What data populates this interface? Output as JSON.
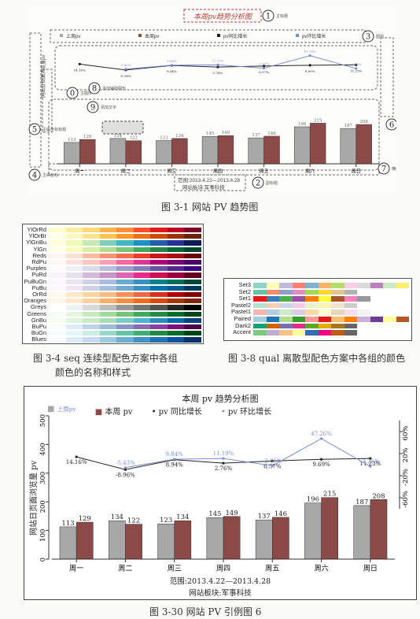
{
  "figure_3_1": {
    "title": "本周pv趋势分析图",
    "legend": [
      "上周pv",
      "本周pv",
      "pv同比增长",
      "pv环比增长"
    ],
    "left_axis_label": "网站日页面浏览量pv",
    "range_text": "范围:2013.4.22—2013.4.28",
    "board_text": "网站板块:军事科技",
    "annotations": [
      {
        "num": "1",
        "text": "主标题"
      },
      {
        "num": "2",
        "text": "副标题"
      },
      {
        "num": "3",
        "text": "图例"
      },
      {
        "num": "4",
        "text": "主纵坐标"
      },
      {
        "num": "5",
        "text": "主纵坐标标题"
      },
      {
        "num": "6",
        "text": "副纵坐标"
      },
      {
        "num": "7",
        "text": "横坐标"
      },
      {
        "num": "8",
        "text": "添加辅助图形"
      },
      {
        "num": "9",
        "text": "添加文字"
      },
      {
        "num": "0",
        "text": "主图形"
      }
    ],
    "caption": "图 3-1 网站 PV 趋势图"
  },
  "figure_3_4": {
    "names": [
      "YlOrRd",
      "YlOrBr",
      "YlGnBu",
      "YlGn",
      "Reds",
      "RdPu",
      "Purples",
      "PuRd",
      "PuBuGn",
      "PuBu",
      "OrRd",
      "Oranges",
      "Greys",
      "Greens",
      "GnBu",
      "BuPu",
      "BuGn",
      "Blues"
    ],
    "colors": [
      [
        "#ffffcc",
        "#ffeda0",
        "#fed976",
        "#feb24c",
        "#fd8d3c",
        "#fc4e2a",
        "#e31a1c",
        "#bd0026",
        "#800026"
      ],
      [
        "#ffffe5",
        "#fff7bc",
        "#fee391",
        "#fec44f",
        "#fe9929",
        "#ec7014",
        "#cc4c02",
        "#993404",
        "#662506"
      ],
      [
        "#ffffd9",
        "#edf8b1",
        "#c7e9b4",
        "#7fcdbb",
        "#41b6c4",
        "#1d91c0",
        "#225ea8",
        "#253494",
        "#081d58"
      ],
      [
        "#ffffe5",
        "#f7fcb9",
        "#d9f0a3",
        "#addd8e",
        "#78c679",
        "#41ab5d",
        "#238443",
        "#006837",
        "#004529"
      ],
      [
        "#fff5f0",
        "#fee0d2",
        "#fcbba1",
        "#fc9272",
        "#fb6a4a",
        "#ef3b2c",
        "#cb181d",
        "#a50f15",
        "#67000d"
      ],
      [
        "#fff7f3",
        "#fde0dd",
        "#fcc5c0",
        "#fa9fb5",
        "#f768a1",
        "#dd3497",
        "#ae017e",
        "#7a0177",
        "#49006a"
      ],
      [
        "#fcfbfd",
        "#efedf5",
        "#dadaeb",
        "#bcbddc",
        "#9e9ac8",
        "#807dba",
        "#6a51a3",
        "#54278f",
        "#3f007d"
      ],
      [
        "#f7f4f9",
        "#e7e1ef",
        "#d4b9da",
        "#c994c7",
        "#df65b0",
        "#e7298a",
        "#ce1256",
        "#980043",
        "#67001f"
      ],
      [
        "#fff7fb",
        "#ece2f0",
        "#d0d1e6",
        "#a6bddb",
        "#67a9cf",
        "#3690c0",
        "#02818a",
        "#016c59",
        "#014636"
      ],
      [
        "#fff7fb",
        "#ece7f2",
        "#d0d1e6",
        "#a6bddb",
        "#74a9cf",
        "#3690c0",
        "#0570b0",
        "#045a8d",
        "#023858"
      ],
      [
        "#fff7ec",
        "#fee8c8",
        "#fdd49e",
        "#fdbb84",
        "#fc8d59",
        "#ef6548",
        "#d7301f",
        "#b30000",
        "#7f0000"
      ],
      [
        "#fff5eb",
        "#fee6ce",
        "#fdd0a2",
        "#fdae6b",
        "#fd8d3c",
        "#f16913",
        "#d94801",
        "#a63603",
        "#7f2704"
      ],
      [
        "#ffffff",
        "#f0f0f0",
        "#d9d9d9",
        "#bdbdbd",
        "#969696",
        "#737373",
        "#525252",
        "#252525",
        "#000000"
      ],
      [
        "#f7fcf5",
        "#e5f5e0",
        "#c7e9c0",
        "#a1d99b",
        "#74c476",
        "#41ab5d",
        "#238b45",
        "#006d2c",
        "#00441b"
      ],
      [
        "#f7fcf0",
        "#e0f3db",
        "#ccebc5",
        "#a8ddb5",
        "#7bccc4",
        "#4eb3d3",
        "#2b8cbe",
        "#0868ac",
        "#084081"
      ],
      [
        "#f7fcfd",
        "#e0ecf4",
        "#bfd3e6",
        "#9ebcda",
        "#8c96c6",
        "#8c6bb1",
        "#88419d",
        "#810f7c",
        "#4d004b"
      ],
      [
        "#f7fcfd",
        "#e5f5f9",
        "#ccece6",
        "#99d8c9",
        "#66c2a4",
        "#41ae76",
        "#238b45",
        "#006d2c",
        "#00441b"
      ],
      [
        "#f7fbff",
        "#deebf7",
        "#c6dbef",
        "#9ecae1",
        "#6baed6",
        "#4292c6",
        "#2171b5",
        "#08519c",
        "#08306b"
      ]
    ],
    "caption_line1": "图 3-4 seq 连续型配色方案中各组",
    "caption_line2": "颜色的名称和样式"
  },
  "figure_3_8": {
    "names": [
      "Set3",
      "Set2",
      "Set1",
      "Pastel2",
      "Pastel1",
      "Paired",
      "Dark2",
      "Accent"
    ],
    "colors": [
      [
        "#8dd3c7",
        "#ffffb3",
        "#bebada",
        "#fb8072",
        "#80b1d3",
        "#fdb462",
        "#b3de69",
        "#fccde5",
        "#d9d9d9",
        "#bc80bd",
        "#ccebc5",
        "#ffed6f"
      ],
      [
        "#66c2a5",
        "#fc8d62",
        "#8da0cb",
        "#e78ac3",
        "#a6d854",
        "#ffd92f",
        "#e5c494",
        "#b3b3b3"
      ],
      [
        "#e41a1c",
        "#377eb8",
        "#4daf4a",
        "#984ea3",
        "#ff7f00",
        "#ffff33",
        "#a65628",
        "#f781bf",
        "#999999"
      ],
      [
        "#b3e2cd",
        "#fdcdac",
        "#cbd5e8",
        "#f4cae4",
        "#e6f5c9",
        "#fff2ae",
        "#f1e2cc",
        "#cccccc"
      ],
      [
        "#fbb4ae",
        "#b3cde3",
        "#ccebc5",
        "#decbe4",
        "#fed9a6",
        "#ffffcc",
        "#e5d8bd",
        "#fddaec",
        "#f2f2f2"
      ],
      [
        "#a6cee3",
        "#1f78b4",
        "#b2df8a",
        "#33a02c",
        "#fb9a99",
        "#e31a1c",
        "#fdbf6f",
        "#ff7f00",
        "#cab2d6",
        "#6a3d9a",
        "#ffff99",
        "#b15928"
      ],
      [
        "#1b9e77",
        "#d95f02",
        "#7570b3",
        "#e7298a",
        "#66a61e",
        "#e6ab02",
        "#a6761d",
        "#666666"
      ],
      [
        "#7fc97f",
        "#beaed4",
        "#fdc086",
        "#ffff99",
        "#386cb0",
        "#f0027f",
        "#bf5b17",
        "#666666"
      ]
    ],
    "caption": "图 3-8 qual 离散型配色方案中各组的颜色"
  },
  "figure_3_30": {
    "title": "本周 pv 趋势分析图",
    "legend": [
      {
        "label": "上周pv",
        "symbol": "■",
        "color": "#a8a8a8"
      },
      {
        "label": "本周 pv",
        "symbol": "■",
        "color": "#8b4a47"
      },
      {
        "label": "pv 同比增长",
        "symbol": "•",
        "color": "#222222"
      },
      {
        "label": "pv 环比增长",
        "symbol": "•",
        "color": "#7a8fd0"
      }
    ],
    "range_text": "范围:2013.4.22—2013.4.28",
    "board_text": "网站板块:军事科技",
    "caption": "图 3-30 网站 PV 引例图 6"
  },
  "chart_data": {
    "type": "bar",
    "categories": [
      "周一",
      "周二",
      "周三",
      "周四",
      "周五",
      "周六",
      "周日"
    ],
    "series": [
      {
        "name": "上周pv",
        "values": [
          113,
          134,
          123,
          145,
          137,
          196,
          187
        ],
        "color": "#a8a8a8"
      },
      {
        "name": "本周 pv",
        "values": [
          129,
          122,
          134,
          149,
          146,
          215,
          208
        ],
        "color": "#8b4a47"
      }
    ],
    "ylabel": "网站日页面浏览量 pv",
    "ylim": [
      0,
      500
    ],
    "yticks": [
      0,
      100,
      200,
      300,
      400,
      500
    ],
    "secondary": {
      "ylim": [
        -80,
        80
      ],
      "yticks": [
        -60,
        -20,
        20,
        60
      ],
      "tick_labels": [
        "-60%",
        "-20%",
        "20%",
        "60%"
      ],
      "lines": [
        {
          "name": "pv 同比增长",
          "color": "#222222",
          "values": [
            14.16,
            -8.96,
            8.94,
            2.76,
            6.57,
            9.69,
            11.23
          ],
          "labels": [
            "14.16%",
            "-8.96%",
            "8.94%",
            "2.76%",
            "6.57%",
            "9.69%",
            "11.23%"
          ]
        },
        {
          "name": "pv 环比增长",
          "color": "#7a8fd0",
          "values": [
            null,
            -5.43,
            9.84,
            11.19,
            -2.01,
            47.26,
            -3.26
          ],
          "labels": [
            "",
            "-5.43%",
            "9.84%",
            "11.19%",
            "-2.01%",
            "47.26%",
            "-3.26%"
          ]
        }
      ]
    },
    "grid": false,
    "legend_position": "top"
  }
}
